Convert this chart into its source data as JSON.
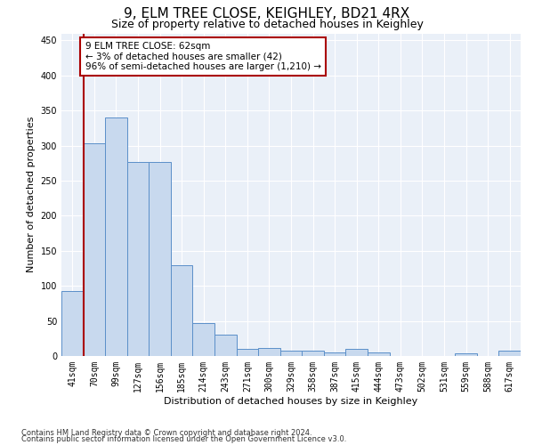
{
  "title": "9, ELM TREE CLOSE, KEIGHLEY, BD21 4RX",
  "subtitle": "Size of property relative to detached houses in Keighley",
  "xlabel": "Distribution of detached houses by size in Keighley",
  "ylabel": "Number of detached properties",
  "categories": [
    "41sqm",
    "70sqm",
    "99sqm",
    "127sqm",
    "156sqm",
    "185sqm",
    "214sqm",
    "243sqm",
    "271sqm",
    "300sqm",
    "329sqm",
    "358sqm",
    "387sqm",
    "415sqm",
    "444sqm",
    "473sqm",
    "502sqm",
    "531sqm",
    "559sqm",
    "588sqm",
    "617sqm"
  ],
  "values": [
    93,
    303,
    340,
    277,
    277,
    130,
    47,
    31,
    10,
    11,
    8,
    8,
    5,
    10,
    5,
    0,
    0,
    0,
    4,
    0,
    7
  ],
  "bar_color": "#c8d9ee",
  "bar_edge_color": "#5b8fc9",
  "ylim": [
    0,
    460
  ],
  "yticks": [
    0,
    50,
    100,
    150,
    200,
    250,
    300,
    350,
    400,
    450
  ],
  "red_line_color": "#aa0000",
  "annotation_title": "9 ELM TREE CLOSE: 62sqm",
  "annotation_line1": "← 3% of detached houses are smaller (42)",
  "annotation_line2": "96% of semi-detached houses are larger (1,210) →",
  "footer_line1": "Contains HM Land Registry data © Crown copyright and database right 2024.",
  "footer_line2": "Contains public sector information licensed under the Open Government Licence v3.0.",
  "background_color": "#eaf0f8",
  "grid_color": "#ffffff",
  "title_fontsize": 11,
  "subtitle_fontsize": 9,
  "axis_label_fontsize": 8,
  "tick_fontsize": 7,
  "annotation_fontsize": 7.5,
  "footer_fontsize": 6
}
